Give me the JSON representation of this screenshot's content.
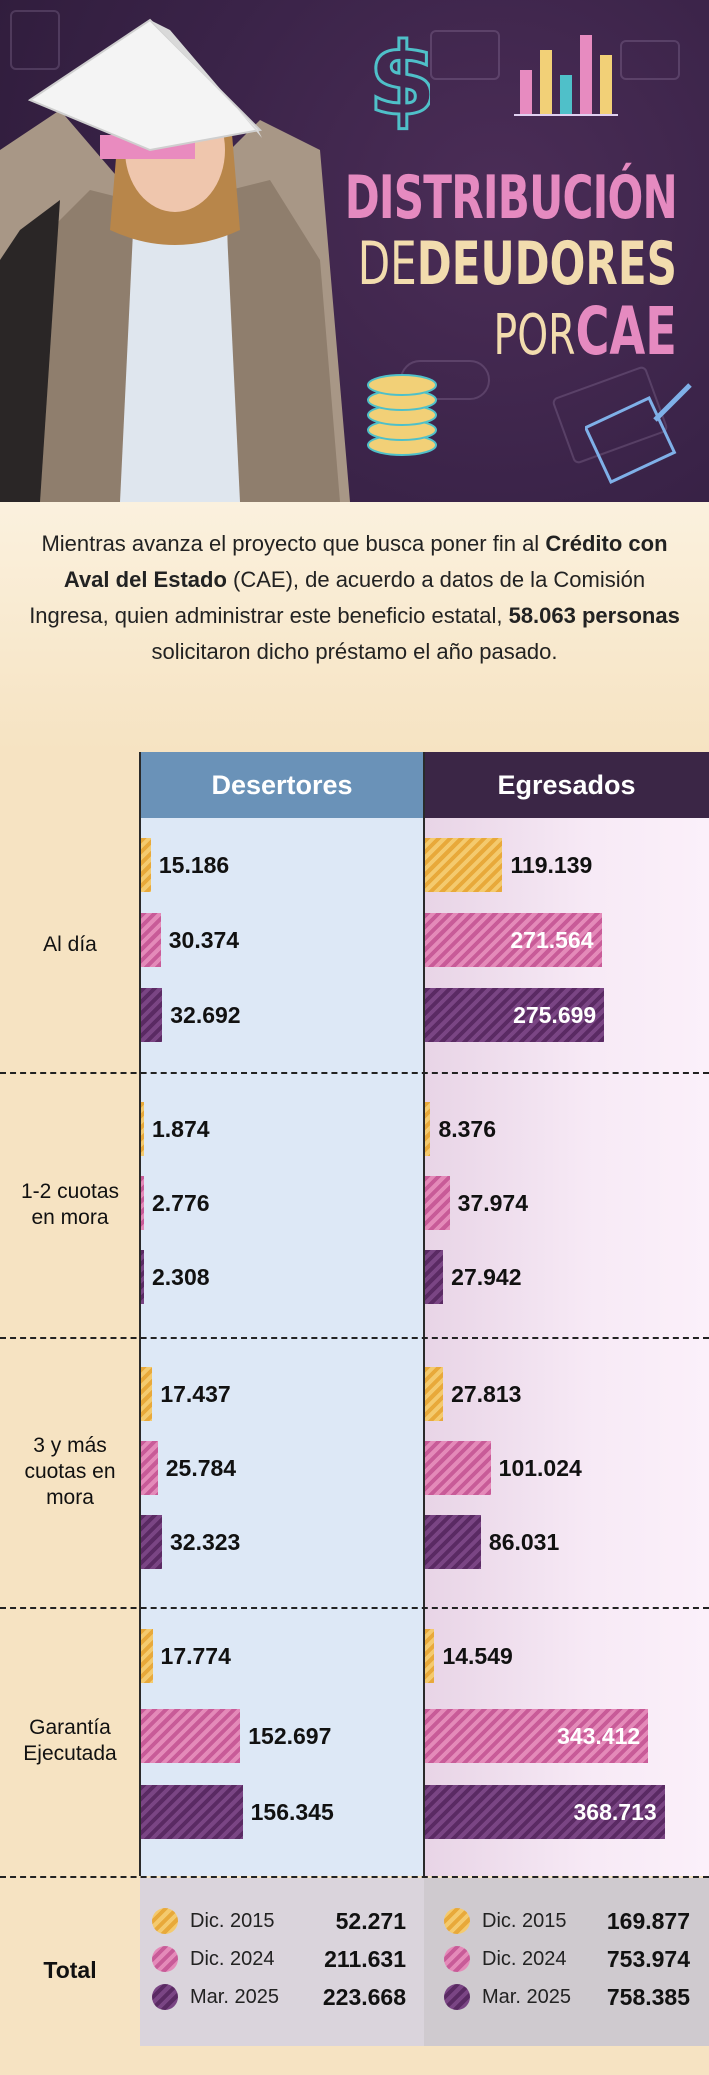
{
  "header": {
    "title_line1": "DISTRIBUCIÓN",
    "title_line2_a": "DE",
    "title_line2_b": "DEUDORES",
    "title_line3_a": "POR",
    "title_line3_b": "CAE"
  },
  "intro": {
    "p1": "Mientras avanza el proyecto que busca poner fin al ",
    "b1": "Crédito con Aval del Estado",
    "p2": " (CAE), de acuerdo a datos de la Comisión Ingresa, quien administrar este beneficio estatal, ",
    "b2": "58.063 personas",
    "p3": " solicitaron dicho préstamo el año pasado."
  },
  "colors": {
    "dic2015": "#e8a93a",
    "dic2024": "#d76aa6",
    "mar2025": "#5a2a63",
    "desertores_header": "#6a92b8",
    "egresados_header": "#3b2646"
  },
  "chart_data": {
    "type": "bar",
    "orientation": "horizontal",
    "groups": [
      "Desertores",
      "Egresados"
    ],
    "categories": [
      "Al día",
      "1-2 cuotas en mora",
      "3 y más cuotas en mora",
      "Garantía Ejecutada"
    ],
    "series": [
      {
        "name": "Dic. 2015",
        "desertores": [
          15186,
          1874,
          17437,
          17774
        ],
        "egresados": [
          119139,
          8376,
          27813,
          14549
        ],
        "labels_desertores": [
          "15.186",
          "1.874",
          "17.437",
          "17.774"
        ],
        "labels_egresados": [
          "119.139",
          "8.376",
          "27.813",
          "14.549"
        ]
      },
      {
        "name": "Dic. 2024",
        "desertores": [
          30374,
          2776,
          25784,
          152697
        ],
        "egresados": [
          271564,
          37974,
          101024,
          343412
        ],
        "labels_desertores": [
          "30.374",
          "2.776",
          "25.784",
          "152.697"
        ],
        "labels_egresados": [
          "271.564",
          "37.974",
          "101.024",
          "343.412"
        ]
      },
      {
        "name": "Mar. 2025",
        "desertores": [
          32692,
          2308,
          32323,
          156345
        ],
        "egresados": [
          275699,
          27942,
          86031,
          368713
        ],
        "labels_desertores": [
          "32.692",
          "2.308",
          "32.323",
          "156.345"
        ],
        "labels_egresados": [
          "275.699",
          "27.942",
          "86.031",
          "368.713"
        ]
      }
    ],
    "xlim": [
      0,
      400000
    ],
    "totals": {
      "label": "Total",
      "desertores": [
        {
          "name": "Dic. 2015",
          "value": "52.271"
        },
        {
          "name": "Dic. 2024",
          "value": "211.631"
        },
        {
          "name": "Mar. 2025",
          "value": "223.668"
        }
      ],
      "egresados": [
        {
          "name": "Dic. 2015",
          "value": "169.877"
        },
        {
          "name": "Dic. 2024",
          "value": "753.974"
        },
        {
          "name": "Mar. 2025",
          "value": "758.385"
        }
      ]
    }
  }
}
